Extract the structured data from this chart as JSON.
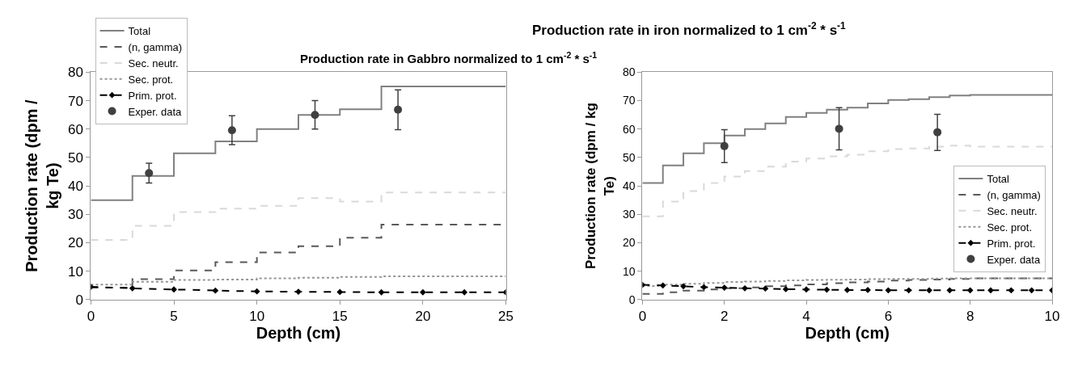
{
  "chart_data": [
    {
      "type": "step",
      "title": "Production rate in Gabbro normalized to 1 cm$^{-2}$ * s$^{-1}$",
      "xlabel": "Depth (cm)",
      "ylabel": "Production rate (dpm /\nkg Te)",
      "xlim": [
        0,
        25
      ],
      "xticks": [
        0,
        5,
        10,
        15,
        20,
        25
      ],
      "ylim": [
        0,
        80
      ],
      "yticks": [
        0,
        10,
        20,
        30,
        40,
        50,
        60,
        70,
        80
      ],
      "legend": "top left",
      "series": [
        {
          "name": "Total",
          "color": "#808080",
          "line_style": "solid",
          "x": [
            0,
            2.5,
            5,
            7.5,
            10,
            12.5,
            15,
            17.5,
            25
          ],
          "values": [
            35,
            43.5,
            51.5,
            55.7,
            60,
            65,
            67,
            75,
            75
          ]
        },
        {
          "name": "(n, gamma)",
          "color": "#595959",
          "line_style": "dashed",
          "x": [
            0,
            2.5,
            5,
            7.5,
            10,
            12.5,
            15,
            17.5,
            25
          ],
          "values": [
            4.2,
            7.2,
            10.3,
            13.2,
            16.6,
            18.8,
            21.8,
            26.4,
            26.4
          ]
        },
        {
          "name": "Sec. neutr.",
          "color": "#d9d9d9",
          "line_style": "dashed",
          "x": [
            0,
            2.5,
            5,
            7.5,
            10,
            12.5,
            15,
            17.5,
            25
          ],
          "values": [
            21,
            26,
            30.8,
            32,
            33,
            35.7,
            34.5,
            37.7,
            37.7
          ]
        },
        {
          "name": "Sec. prot.",
          "color": "#969696",
          "line_style": "dotted",
          "x": [
            0,
            2.5,
            5,
            7.5,
            10,
            12.5,
            15,
            17.5,
            25
          ],
          "values": [
            5.3,
            6.3,
            6.9,
            7.1,
            7.5,
            7.7,
            8.0,
            8.2,
            8.2
          ]
        },
        {
          "name": "Prim. prot.",
          "type": "line",
          "color": "#000000",
          "line_style": "dashed",
          "marker": "diamond",
          "x": [
            0,
            2.5,
            5,
            7.5,
            10,
            12.5,
            15,
            17.5,
            20,
            22.5,
            25
          ],
          "values": [
            4.5,
            4.0,
            3.6,
            3.2,
            2.9,
            2.8,
            2.7,
            2.6,
            2.6,
            2.6,
            2.6
          ]
        },
        {
          "name": "Exper. data",
          "type": "scatter",
          "color": "#404040",
          "marker": "circle",
          "x": [
            3.5,
            8.5,
            13.5,
            18.5
          ],
          "values": [
            44.5,
            59.6,
            65,
            66.8
          ],
          "errors": [
            [
              41,
              48
            ],
            [
              54.5,
              64.7
            ],
            [
              60,
              70
            ],
            [
              59.8,
              73.8
            ]
          ]
        }
      ]
    },
    {
      "type": "step",
      "title": "Production rate in iron normalized to 1 cm$^{-2}$ * s$^{-1}$",
      "xlabel": "Depth (cm)",
      "ylabel": "Production rate (dpm / kg\nTe)",
      "xlim": [
        0,
        10
      ],
      "xticks": [
        0,
        2,
        4,
        6,
        8,
        10
      ],
      "ylim": [
        0,
        80
      ],
      "yticks": [
        0,
        10,
        20,
        30,
        40,
        50,
        60,
        70,
        80
      ],
      "legend": "right",
      "series": [
        {
          "name": "Total",
          "color": "#808080",
          "line_style": "solid",
          "x": [
            0,
            0.5,
            1,
            1.5,
            2,
            2.5,
            3,
            3.5,
            4,
            4.5,
            5,
            5.5,
            6,
            6.5,
            7,
            7.5,
            8,
            10
          ],
          "values": [
            41,
            47.2,
            51.5,
            55,
            57.7,
            60,
            62,
            64.3,
            65.7,
            66.8,
            67.5,
            69,
            70.2,
            70.5,
            71.2,
            71.8,
            72,
            72
          ]
        },
        {
          "name": "(n, gamma)",
          "color": "#595959",
          "line_style": "dashed",
          "x": [
            0,
            0.5,
            1,
            1.5,
            2,
            2.5,
            3,
            3.5,
            4,
            4.5,
            5,
            5.5,
            6,
            6.5,
            7,
            7.5,
            8,
            10
          ],
          "values": [
            2.0,
            2.6,
            3.2,
            3.6,
            4.0,
            4.3,
            4.7,
            5.0,
            5.4,
            5.8,
            6.1,
            6.4,
            6.7,
            6.9,
            7.1,
            7.3,
            7.5,
            7.5
          ]
        },
        {
          "name": "Sec. neutr.",
          "color": "#d9d9d9",
          "line_style": "dashed",
          "x": [
            0,
            0.5,
            1,
            1.5,
            2,
            2.5,
            3,
            3.5,
            4,
            4.5,
            5,
            5.5,
            6,
            6.5,
            7,
            7.5,
            8,
            10
          ],
          "values": [
            29.3,
            34.5,
            38.2,
            41,
            43.3,
            45.2,
            46.8,
            48.6,
            49.6,
            50.4,
            51,
            52.2,
            53,
            53.2,
            53.8,
            54.2,
            53.8,
            53.8
          ]
        },
        {
          "name": "Sec. prot.",
          "color": "#969696",
          "line_style": "dotted",
          "x": [
            0,
            0.5,
            1,
            1.5,
            2,
            2.5,
            3,
            3.5,
            4,
            4.5,
            5,
            5.5,
            6,
            6.5,
            7,
            7.5,
            8,
            10
          ],
          "values": [
            4.8,
            5.3,
            5.6,
            5.9,
            6.2,
            6.4,
            6.6,
            6.8,
            6.9,
            7.0,
            7.1,
            7.2,
            7.3,
            7.3,
            7.4,
            7.5,
            7.5,
            7.5
          ]
        },
        {
          "name": "Prim. prot.",
          "type": "line",
          "color": "#000000",
          "line_style": "dashed",
          "marker": "diamond",
          "x": [
            0,
            0.5,
            1,
            1.5,
            2,
            2.5,
            3,
            3.5,
            4,
            4.5,
            5,
            5.5,
            6,
            6.5,
            7,
            7.5,
            8,
            8.5,
            9,
            9.5,
            10
          ],
          "values": [
            5.2,
            5.0,
            4.7,
            4.4,
            4.2,
            4.0,
            3.9,
            3.7,
            3.6,
            3.5,
            3.4,
            3.4,
            3.3,
            3.3,
            3.3,
            3.3,
            3.3,
            3.3,
            3.3,
            3.3,
            3.3
          ]
        },
        {
          "name": "Exper. data",
          "type": "scatter",
          "color": "#404040",
          "marker": "circle",
          "x": [
            2,
            4.8,
            7.2
          ],
          "values": [
            54,
            60.1,
            58.9
          ],
          "errors": [
            [
              48.2,
              59.8
            ],
            [
              52.7,
              67.5
            ],
            [
              52.5,
              65.2
            ]
          ]
        }
      ]
    }
  ]
}
